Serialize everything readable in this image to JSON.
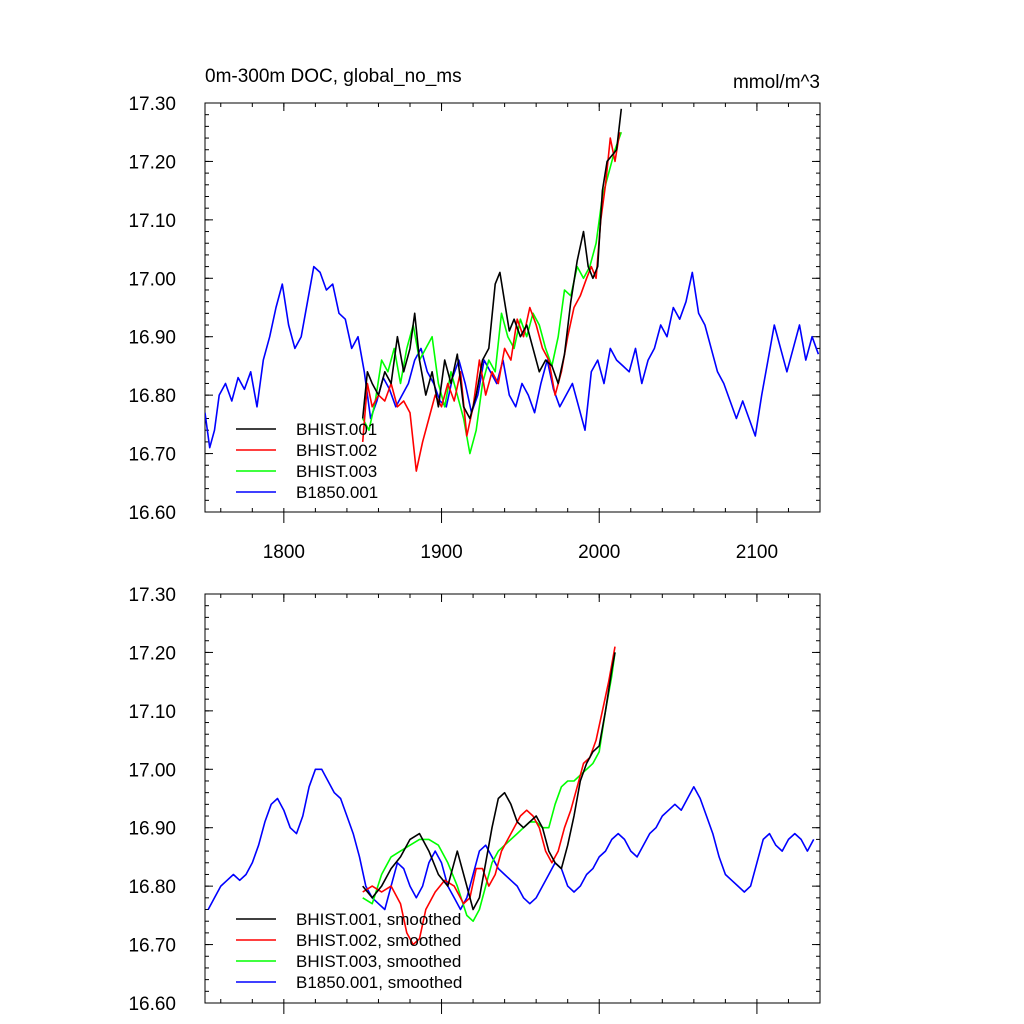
{
  "chart_data": [
    {
      "type": "line",
      "title": "0m-300m DOC, global_no_ms",
      "units": "mmol/m^3",
      "xlim": [
        1750,
        2140
      ],
      "ylim": [
        16.6,
        17.3
      ],
      "xticks": [
        1800,
        1900,
        2000,
        2100
      ],
      "yticks": [
        "16.60",
        "16.70",
        "16.80",
        "16.90",
        "17.00",
        "17.10",
        "17.20",
        "17.30"
      ],
      "x_tick_labels_shown": true,
      "legend_position": "bottom-left",
      "series": [
        {
          "name": "BHIST.001",
          "color": "#000000",
          "x": [
            1850,
            1853,
            1856,
            1860,
            1864,
            1868,
            1872,
            1876,
            1880,
            1883,
            1886,
            1890,
            1894,
            1898,
            1902,
            1906,
            1910,
            1914,
            1918,
            1922,
            1926,
            1930,
            1934,
            1937,
            1940,
            1943,
            1946,
            1950,
            1954,
            1958,
            1962,
            1966,
            1970,
            1974,
            1978,
            1982,
            1986,
            1990,
            1993,
            1996,
            1999,
            2002,
            2005,
            2008,
            2011,
            2014
          ],
          "y": [
            16.76,
            16.84,
            16.82,
            16.8,
            16.84,
            16.82,
            16.9,
            16.84,
            16.88,
            16.94,
            16.86,
            16.8,
            16.84,
            16.78,
            16.86,
            16.82,
            16.87,
            16.78,
            16.76,
            16.8,
            16.86,
            16.88,
            16.99,
            17.01,
            16.96,
            16.91,
            16.93,
            16.9,
            16.92,
            16.88,
            16.84,
            16.86,
            16.85,
            16.82,
            16.87,
            16.96,
            17.03,
            17.08,
            17.02,
            17.0,
            17.02,
            17.15,
            17.2,
            17.21,
            17.22,
            17.29
          ]
        },
        {
          "name": "BHIST.002",
          "color": "#ff0000",
          "x": [
            1850,
            1853,
            1856,
            1860,
            1864,
            1868,
            1872,
            1876,
            1880,
            1884,
            1888,
            1892,
            1896,
            1900,
            1904,
            1908,
            1912,
            1916,
            1920,
            1924,
            1928,
            1932,
            1936,
            1940,
            1944,
            1948,
            1952,
            1956,
            1960,
            1964,
            1968,
            1972,
            1976,
            1980,
            1984,
            1988,
            1992,
            1995,
            1998,
            2001,
            2004,
            2007,
            2010,
            2013
          ],
          "y": [
            16.72,
            16.82,
            16.78,
            16.8,
            16.79,
            16.82,
            16.78,
            16.79,
            16.77,
            16.67,
            16.72,
            16.76,
            16.8,
            16.78,
            16.82,
            16.79,
            16.84,
            16.73,
            16.78,
            16.86,
            16.8,
            16.84,
            16.82,
            16.88,
            16.86,
            16.93,
            16.9,
            16.95,
            16.92,
            16.88,
            16.86,
            16.8,
            16.84,
            16.9,
            16.95,
            16.97,
            17.0,
            17.02,
            17.0,
            17.1,
            17.16,
            17.24,
            17.2,
            17.25
          ]
        },
        {
          "name": "BHIST.003",
          "color": "#00ff00",
          "x": [
            1850,
            1854,
            1858,
            1862,
            1866,
            1870,
            1874,
            1878,
            1882,
            1886,
            1890,
            1894,
            1898,
            1902,
            1906,
            1910,
            1914,
            1918,
            1922,
            1926,
            1930,
            1934,
            1938,
            1942,
            1946,
            1950,
            1954,
            1958,
            1962,
            1966,
            1970,
            1974,
            1978,
            1982,
            1986,
            1990,
            1994,
            1998,
            2002,
            2006,
            2010,
            2014
          ],
          "y": [
            16.76,
            16.74,
            16.79,
            16.86,
            16.84,
            16.88,
            16.82,
            16.88,
            16.92,
            16.86,
            16.88,
            16.9,
            16.82,
            16.78,
            16.84,
            16.8,
            16.76,
            16.7,
            16.74,
            16.82,
            16.86,
            16.84,
            16.94,
            16.9,
            16.88,
            16.93,
            16.9,
            16.94,
            16.92,
            16.88,
            16.85,
            16.9,
            16.98,
            16.97,
            17.02,
            17.0,
            17.02,
            17.06,
            17.14,
            17.18,
            17.22,
            17.25
          ]
        },
        {
          "name": "B1850.001",
          "color": "#0000ff",
          "x": [
            1750,
            1753,
            1756,
            1759,
            1763,
            1767,
            1771,
            1775,
            1779,
            1783,
            1787,
            1791,
            1795,
            1799,
            1803,
            1807,
            1811,
            1815,
            1819,
            1823,
            1827,
            1831,
            1835,
            1839,
            1843,
            1847,
            1851,
            1855,
            1859,
            1863,
            1867,
            1871,
            1875,
            1879,
            1883,
            1887,
            1891,
            1895,
            1899,
            1903,
            1907,
            1911,
            1915,
            1919,
            1923,
            1927,
            1931,
            1935,
            1939,
            1943,
            1947,
            1951,
            1955,
            1959,
            1963,
            1967,
            1971,
            1975,
            1979,
            1983,
            1987,
            1991,
            1995,
            1999,
            2003,
            2007,
            2011,
            2015,
            2019,
            2023,
            2027,
            2031,
            2035,
            2039,
            2043,
            2047,
            2051,
            2055,
            2059,
            2063,
            2067,
            2071,
            2075,
            2079,
            2083,
            2087,
            2091,
            2095,
            2099,
            2103,
            2107,
            2111,
            2115,
            2119,
            2123,
            2127,
            2131,
            2135,
            2139
          ],
          "y": [
            16.77,
            16.71,
            16.74,
            16.8,
            16.82,
            16.79,
            16.83,
            16.81,
            16.84,
            16.78,
            16.86,
            16.9,
            16.95,
            16.99,
            16.92,
            16.88,
            16.9,
            16.96,
            17.02,
            17.01,
            16.98,
            16.99,
            16.94,
            16.93,
            16.88,
            16.9,
            16.84,
            16.76,
            16.79,
            16.83,
            16.81,
            16.78,
            16.8,
            16.82,
            16.86,
            16.88,
            16.84,
            16.82,
            16.79,
            16.78,
            16.83,
            16.86,
            16.82,
            16.77,
            16.8,
            16.86,
            16.84,
            16.82,
            16.86,
            16.8,
            16.78,
            16.82,
            16.8,
            16.77,
            16.82,
            16.86,
            16.81,
            16.78,
            16.8,
            16.82,
            16.78,
            16.74,
            16.84,
            16.86,
            16.82,
            16.88,
            16.86,
            16.85,
            16.84,
            16.88,
            16.82,
            16.86,
            16.88,
            16.92,
            16.9,
            16.95,
            16.93,
            16.96,
            17.01,
            16.94,
            16.92,
            16.88,
            16.84,
            16.82,
            16.79,
            16.76,
            16.79,
            16.76,
            16.73,
            16.8,
            16.86,
            16.92,
            16.88,
            16.84,
            16.88,
            16.92,
            16.86,
            16.9,
            16.87
          ]
        }
      ]
    },
    {
      "type": "line",
      "xlim": [
        1750,
        2140
      ],
      "ylim": [
        16.6,
        17.3
      ],
      "xticks": [
        1800,
        1900,
        2000,
        2100
      ],
      "yticks": [
        "16.60",
        "16.70",
        "16.80",
        "16.90",
        "17.00",
        "17.10",
        "17.20",
        "17.30"
      ],
      "x_tick_labels_shown": false,
      "legend_position": "bottom-left",
      "series": [
        {
          "name": "BHIST.001, smoothed",
          "color": "#000000",
          "x": [
            1850,
            1856,
            1862,
            1868,
            1874,
            1880,
            1886,
            1892,
            1898,
            1904,
            1910,
            1916,
            1920,
            1924,
            1928,
            1932,
            1936,
            1940,
            1944,
            1948,
            1952,
            1956,
            1960,
            1964,
            1968,
            1972,
            1976,
            1980,
            1984,
            1988,
            1992,
            1996,
            2000,
            2004,
            2008,
            2010
          ],
          "y": [
            16.8,
            16.78,
            16.8,
            16.83,
            16.85,
            16.88,
            16.89,
            16.86,
            16.82,
            16.8,
            16.86,
            16.8,
            16.76,
            16.78,
            16.84,
            16.9,
            16.95,
            16.96,
            16.94,
            16.91,
            16.9,
            16.91,
            16.92,
            16.9,
            16.86,
            16.84,
            16.83,
            16.87,
            16.92,
            16.98,
            17.01,
            17.03,
            17.04,
            17.1,
            17.17,
            17.2
          ]
        },
        {
          "name": "BHIST.002, smoothed",
          "color": "#ff0000",
          "x": [
            1850,
            1856,
            1862,
            1868,
            1874,
            1878,
            1882,
            1886,
            1890,
            1896,
            1902,
            1908,
            1914,
            1918,
            1922,
            1926,
            1930,
            1934,
            1938,
            1942,
            1946,
            1950,
            1954,
            1958,
            1962,
            1966,
            1970,
            1974,
            1978,
            1982,
            1986,
            1990,
            1994,
            1998,
            2002,
            2006,
            2010
          ],
          "y": [
            16.79,
            16.8,
            16.79,
            16.8,
            16.77,
            16.72,
            16.7,
            16.71,
            16.76,
            16.79,
            16.81,
            16.8,
            16.77,
            16.78,
            16.83,
            16.83,
            16.8,
            16.82,
            16.86,
            16.88,
            16.9,
            16.92,
            16.93,
            16.92,
            16.9,
            16.86,
            16.84,
            16.86,
            16.9,
            16.93,
            16.97,
            17.01,
            17.02,
            17.05,
            17.1,
            17.15,
            17.21
          ]
        },
        {
          "name": "BHIST.003, smoothed",
          "color": "#00ff00",
          "x": [
            1850,
            1856,
            1862,
            1868,
            1874,
            1880,
            1886,
            1892,
            1898,
            1904,
            1910,
            1916,
            1920,
            1924,
            1928,
            1932,
            1936,
            1940,
            1944,
            1948,
            1952,
            1956,
            1960,
            1964,
            1968,
            1972,
            1976,
            1980,
            1984,
            1988,
            1992,
            1996,
            2000,
            2004,
            2008,
            2010
          ],
          "y": [
            16.78,
            16.77,
            16.82,
            16.85,
            16.86,
            16.87,
            16.88,
            16.88,
            16.87,
            16.84,
            16.8,
            16.75,
            16.74,
            16.76,
            16.8,
            16.84,
            16.86,
            16.87,
            16.88,
            16.89,
            16.9,
            16.91,
            16.91,
            16.9,
            16.9,
            16.94,
            16.97,
            16.98,
            16.98,
            16.99,
            17.0,
            17.01,
            17.03,
            17.1,
            17.16,
            17.2
          ]
        },
        {
          "name": "B1850.001, smoothed",
          "color": "#0000ff",
          "x": [
            1752,
            1756,
            1760,
            1764,
            1768,
            1772,
            1776,
            1780,
            1784,
            1788,
            1792,
            1796,
            1800,
            1804,
            1808,
            1812,
            1816,
            1820,
            1824,
            1828,
            1832,
            1836,
            1840,
            1844,
            1848,
            1852,
            1856,
            1860,
            1864,
            1868,
            1872,
            1876,
            1880,
            1884,
            1888,
            1892,
            1896,
            1900,
            1904,
            1908,
            1912,
            1916,
            1920,
            1924,
            1928,
            1932,
            1936,
            1940,
            1944,
            1948,
            1952,
            1956,
            1960,
            1964,
            1968,
            1972,
            1976,
            1980,
            1984,
            1988,
            1992,
            1996,
            2000,
            2004,
            2008,
            2012,
            2016,
            2020,
            2024,
            2028,
            2032,
            2036,
            2040,
            2044,
            2048,
            2052,
            2056,
            2060,
            2064,
            2068,
            2072,
            2076,
            2080,
            2084,
            2088,
            2092,
            2096,
            2100,
            2104,
            2108,
            2112,
            2116,
            2120,
            2124,
            2128,
            2132,
            2136
          ],
          "y": [
            16.76,
            16.78,
            16.8,
            16.81,
            16.82,
            16.81,
            16.82,
            16.84,
            16.87,
            16.91,
            16.94,
            16.95,
            16.93,
            16.9,
            16.89,
            16.92,
            16.97,
            17.0,
            17.0,
            16.98,
            16.96,
            16.95,
            16.92,
            16.89,
            16.85,
            16.8,
            16.78,
            16.77,
            16.76,
            16.8,
            16.84,
            16.83,
            16.8,
            16.78,
            16.8,
            16.84,
            16.86,
            16.84,
            16.8,
            16.78,
            16.76,
            16.78,
            16.82,
            16.86,
            16.87,
            16.85,
            16.83,
            16.82,
            16.81,
            16.8,
            16.78,
            16.77,
            16.78,
            16.8,
            16.82,
            16.84,
            16.83,
            16.8,
            16.79,
            16.8,
            16.82,
            16.83,
            16.85,
            16.86,
            16.88,
            16.89,
            16.88,
            16.86,
            16.85,
            16.87,
            16.89,
            16.9,
            16.92,
            16.93,
            16.94,
            16.93,
            16.95,
            16.97,
            16.95,
            16.92,
            16.89,
            16.85,
            16.82,
            16.81,
            16.8,
            16.79,
            16.8,
            16.84,
            16.88,
            16.89,
            16.87,
            16.86,
            16.88,
            16.89,
            16.88,
            16.86,
            16.88
          ]
        }
      ]
    }
  ]
}
